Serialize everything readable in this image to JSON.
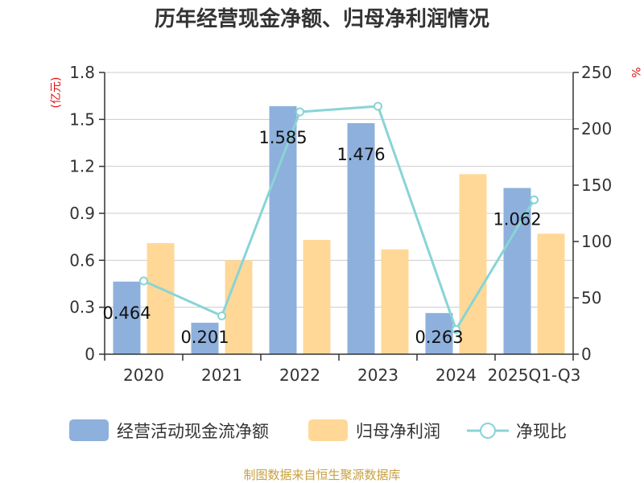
{
  "chart_data": {
    "type": "bar",
    "title": "历年经营现金净额、归母净利润情况",
    "categories": [
      "2020",
      "2021",
      "2022",
      "2023",
      "2024",
      "2025Q1-Q3"
    ],
    "left_axis": {
      "unit": "(亿元)",
      "ylim": [
        0,
        1.8
      ],
      "ticks": [
        "0",
        "0.3",
        "0.6",
        "0.9",
        "1.2",
        "1.5",
        "1.8"
      ]
    },
    "right_axis": {
      "unit": "%",
      "ylim": [
        0,
        250
      ],
      "ticks": [
        "0",
        "50",
        "100",
        "150",
        "200",
        "250"
      ]
    },
    "series": [
      {
        "name": "经营活动现金流净额",
        "type": "bar",
        "axis": "left",
        "color": "#8eb0dc",
        "values": [
          0.464,
          0.201,
          1.585,
          1.476,
          0.263,
          1.062
        ],
        "labels": [
          "0.464",
          "0.201",
          "1.585",
          "1.476",
          "0.263",
          "1.062"
        ]
      },
      {
        "name": "归母净利润",
        "type": "bar",
        "axis": "left",
        "color": "#ffd897",
        "values": [
          0.71,
          0.6,
          0.73,
          0.67,
          1.15,
          0.77
        ]
      },
      {
        "name": "净现比",
        "type": "line",
        "axis": "right",
        "color": "#88d4d6",
        "values": [
          65,
          34,
          215,
          220,
          22,
          137
        ]
      }
    ],
    "grid": true,
    "legend_position": "bottom"
  },
  "source": "制图数据来自恒生聚源数据库"
}
